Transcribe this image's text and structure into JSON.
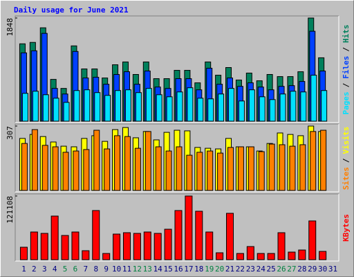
{
  "chart_data": [
    {
      "type": "bar",
      "title": "Daily usage for June 2021",
      "ylim": [
        0,
        1848
      ],
      "yticks": [
        1848
      ],
      "legend_separator": "/",
      "series": [
        {
          "name": "Hits",
          "color": "#00805c",
          "values": [
            1386,
            1411,
            1673,
            749,
            587,
            1349,
            936,
            936,
            774,
            1011,
            1061,
            837,
            1061,
            762,
            762,
            911,
            911,
            687,
            1061,
            824,
            961,
            737,
            862,
            724,
            837,
            799,
            799,
            886,
            1848,
            1136,
            null
          ]
        },
        {
          "name": "Files",
          "color": "#0040ff",
          "values": [
            1224,
            1261,
            1573,
            587,
            487,
            1249,
            774,
            787,
            662,
            837,
            886,
            662,
            899,
            612,
            587,
            762,
            762,
            562,
            949,
            662,
            774,
            624,
            687,
            612,
            562,
            624,
            637,
            712,
            1611,
            899,
            null
          ]
        },
        {
          "name": "Pages",
          "color": "#00e0ff",
          "values": [
            499,
            537,
            474,
            412,
            337,
            549,
            562,
            512,
            462,
            549,
            562,
            512,
            587,
            474,
            437,
            524,
            599,
            412,
            400,
            487,
            587,
            362,
            562,
            437,
            387,
            487,
            537,
            524,
            824,
            549,
            null
          ]
        }
      ]
    },
    {
      "type": "bar",
      "ylim": [
        0,
        307
      ],
      "yticks": [
        307
      ],
      "legend_separator": "/",
      "series": [
        {
          "name": "Visits",
          "color": "#ffff00",
          "values": [
            248,
            267,
            257,
            231,
            211,
            208,
            248,
            261,
            234,
            290,
            300,
            251,
            281,
            241,
            277,
            287,
            284,
            205,
            201,
            198,
            248,
            208,
            208,
            188,
            224,
            274,
            267,
            261,
            307,
            281,
            null
          ]
        },
        {
          "name": "Sites",
          "color": "#ff8000",
          "values": [
            224,
            290,
            215,
            208,
            182,
            188,
            195,
            287,
            198,
            261,
            257,
            201,
            281,
            208,
            188,
            208,
            168,
            182,
            188,
            178,
            205,
            208,
            208,
            185,
            221,
            218,
            211,
            218,
            281,
            287,
            null
          ]
        }
      ]
    },
    {
      "type": "bar",
      "ylim": [
        0,
        121108
      ],
      "yticks": [
        121108
      ],
      "categories": [
        "1",
        "2",
        "3",
        "4",
        "5",
        "6",
        "7",
        "8",
        "9",
        "10",
        "11",
        "12",
        "13",
        "14",
        "15",
        "16",
        "17",
        "18",
        "19",
        "20",
        "21",
        "22",
        "23",
        "24",
        "25",
        "26",
        "27",
        "28",
        "29",
        "30",
        "31"
      ],
      "category_color": "#000080",
      "highlight_color": "#008040",
      "highlighted": [
        4,
        5,
        11,
        12,
        18,
        19,
        25,
        26
      ],
      "series": [
        {
          "name": "KBytes",
          "color": "#ff0000",
          "values": [
            23695,
            52656,
            50023,
            82932,
            46074,
            52656,
            17113,
            93463,
            11848,
            48706,
            51339,
            50023,
            52656,
            50023,
            57921,
            93463,
            121108,
            92148,
            52656,
            13164,
            88198,
            11848,
            25011,
            11848,
            11848,
            51339,
            14480,
            18430,
            73718,
            15797,
            null
          ]
        }
      ]
    }
  ]
}
